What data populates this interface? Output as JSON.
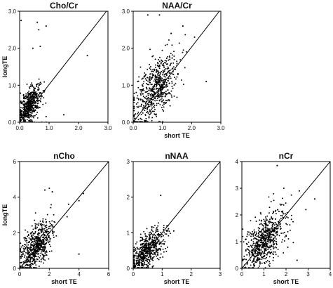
{
  "figure": {
    "shared_xlabel": "short TE",
    "shared_ylabel": "longTE"
  },
  "chart_data": [
    {
      "type": "scatter",
      "title": "Cho/Cr",
      "xlabel": "",
      "ylabel": "longTE",
      "xlim": [
        0,
        3.0
      ],
      "ylim": [
        0,
        3.0
      ],
      "xticks": [
        "0.0",
        "1.0",
        "2.0",
        "3.0"
      ],
      "yticks": [
        "0.0",
        "1.0",
        "2.0",
        "3.0"
      ],
      "xtick_values": [
        0,
        1,
        2,
        3
      ],
      "ytick_values": [
        0,
        1,
        2,
        3
      ],
      "identity_line": [
        [
          0,
          0
        ],
        [
          2.95,
          3.0
        ]
      ],
      "cluster": {
        "cx": 0.35,
        "cy": 0.48,
        "sx": 0.18,
        "sy": 0.25,
        "rho": 0.55,
        "n": 520
      },
      "outliers": [
        [
          0.05,
          2.75
        ],
        [
          0.6,
          2.7
        ],
        [
          0.9,
          2.6
        ],
        [
          0.65,
          2.5
        ],
        [
          0.7,
          2.05
        ],
        [
          0.45,
          2.0
        ],
        [
          2.3,
          1.8
        ],
        [
          1.5,
          0.2
        ],
        [
          0.9,
          0.15
        ],
        [
          0.9,
          0.0
        ],
        [
          0.75,
          0.0
        ],
        [
          0.5,
          0.0
        ],
        [
          0.15,
          0.0
        ],
        [
          0.3,
          0.0
        ]
      ]
    },
    {
      "type": "scatter",
      "title": "NAA/Cr",
      "xlabel": "short TE",
      "ylabel": "",
      "xlim": [
        0,
        3.0
      ],
      "ylim": [
        0,
        3.0
      ],
      "xticks": [
        "0.0",
        "1.0",
        "2.0",
        "3.0"
      ],
      "yticks": [
        "0.0",
        "1.0",
        "2.0",
        "3.0"
      ],
      "xtick_values": [
        0,
        1,
        2,
        3
      ],
      "ytick_values": [
        0,
        1,
        2,
        3
      ],
      "identity_line": [
        [
          0,
          0
        ],
        [
          2.95,
          3.0
        ]
      ],
      "cluster": {
        "cx": 0.75,
        "cy": 0.9,
        "sx": 0.38,
        "sy": 0.45,
        "rho": 0.55,
        "n": 620
      },
      "outliers": [
        [
          0.5,
          2.9
        ],
        [
          0.9,
          2.9
        ],
        [
          1.7,
          2.6
        ],
        [
          2.1,
          2.3
        ],
        [
          1.3,
          2.4
        ],
        [
          2.5,
          1.1
        ],
        [
          0.25,
          0.1
        ]
      ]
    },
    {
      "type": "scatter",
      "title": "nCho",
      "xlabel": "short TE",
      "ylabel": "longTE",
      "xlim": [
        0,
        6
      ],
      "ylim": [
        0,
        6
      ],
      "xticks": [
        "0",
        "2",
        "4",
        "6"
      ],
      "yticks": [
        "0",
        "2",
        "4",
        "6"
      ],
      "xtick_values": [
        0,
        2,
        4,
        6
      ],
      "ytick_values": [
        0,
        2,
        4,
        6
      ],
      "identity_line": [
        [
          0,
          0
        ],
        [
          6.0,
          6.0
        ]
      ],
      "cluster": {
        "cx": 1.1,
        "cy": 1.2,
        "sx": 0.55,
        "sy": 0.75,
        "rho": 0.6,
        "n": 620
      },
      "outliers": [
        [
          2.0,
          4.5
        ],
        [
          1.7,
          4.4
        ],
        [
          2.2,
          4.3
        ],
        [
          4.3,
          4.2
        ],
        [
          4.0,
          3.8
        ],
        [
          3.3,
          3.6
        ],
        [
          4.0,
          0.8
        ],
        [
          3.2,
          2.9
        ]
      ]
    },
    {
      "type": "scatter",
      "title": "nNAA",
      "xlabel": "short TE",
      "ylabel": "",
      "xlim": [
        0,
        3
      ],
      "ylim": [
        0,
        3
      ],
      "xticks": [
        "0",
        "1",
        "2",
        "3"
      ],
      "yticks": [
        "0",
        "1",
        "2",
        "3"
      ],
      "xtick_values": [
        0,
        1,
        2,
        3
      ],
      "ytick_values": [
        0,
        1,
        2,
        3
      ],
      "identity_line": [
        [
          0,
          0
        ],
        [
          3.0,
          3.0
        ]
      ],
      "cluster": {
        "cx": 0.5,
        "cy": 0.5,
        "sx": 0.28,
        "sy": 0.3,
        "rho": 0.55,
        "n": 560
      },
      "outliers": [
        [
          0.95,
          2.05
        ],
        [
          1.4,
          1.05
        ],
        [
          1.2,
          1.2
        ],
        [
          0.05,
          0.05
        ]
      ]
    },
    {
      "type": "scatter",
      "title": "nCr",
      "xlabel": "short TE",
      "ylabel": "",
      "xlim": [
        0,
        4
      ],
      "ylim": [
        0,
        4
      ],
      "xticks": [
        "0",
        "1",
        "2",
        "3",
        "4"
      ],
      "yticks": [
        "0",
        "1",
        "2",
        "3",
        "4"
      ],
      "xtick_values": [
        0,
        1,
        2,
        3,
        4
      ],
      "ytick_values": [
        0,
        1,
        2,
        3,
        4
      ],
      "identity_line": [
        [
          0,
          0
        ],
        [
          4.0,
          4.0
        ]
      ],
      "cluster": {
        "cx": 1.0,
        "cy": 1.05,
        "sx": 0.45,
        "sy": 0.55,
        "rho": 0.55,
        "n": 660
      },
      "outliers": [
        [
          1.6,
          3.85
        ],
        [
          1.9,
          3.0
        ],
        [
          2.6,
          2.9
        ],
        [
          3.3,
          2.6
        ],
        [
          2.9,
          2.2
        ],
        [
          2.5,
          0.3
        ],
        [
          0.25,
          0.2
        ]
      ]
    }
  ]
}
